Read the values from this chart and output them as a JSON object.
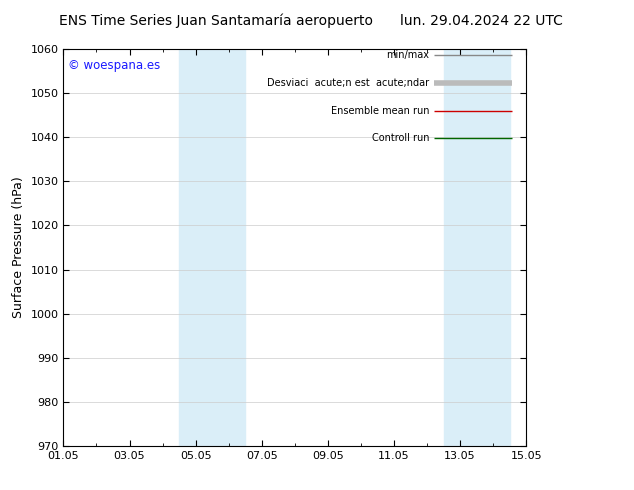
{
  "title_left": "ENS Time Series Juan Santamaría aeropuerto",
  "title_right": "lun. 29.04.2024 22 UTC",
  "ylabel": "Surface Pressure (hPa)",
  "ylim": [
    970,
    1060
  ],
  "yticks": [
    970,
    980,
    990,
    1000,
    1010,
    1020,
    1030,
    1040,
    1050,
    1060
  ],
  "xlim": [
    0,
    14
  ],
  "xtick_labels": [
    "01.05",
    "03.05",
    "05.05",
    "07.05",
    "09.05",
    "11.05",
    "13.05",
    "15.05"
  ],
  "xtick_positions": [
    0,
    2,
    4,
    6,
    8,
    10,
    12,
    14
  ],
  "bg_color": "#ffffff",
  "plot_bg_color": "#ffffff",
  "band1_xmin": 3.5,
  "band1_xmax": 5.5,
  "band2_xmin": 11.5,
  "band2_xmax": 13.5,
  "band_color": "#daeef8",
  "watermark": "© woespana.es",
  "watermark_color": "#1a1aff",
  "title_fontsize": 10,
  "tick_fontsize": 8,
  "ylabel_fontsize": 9
}
